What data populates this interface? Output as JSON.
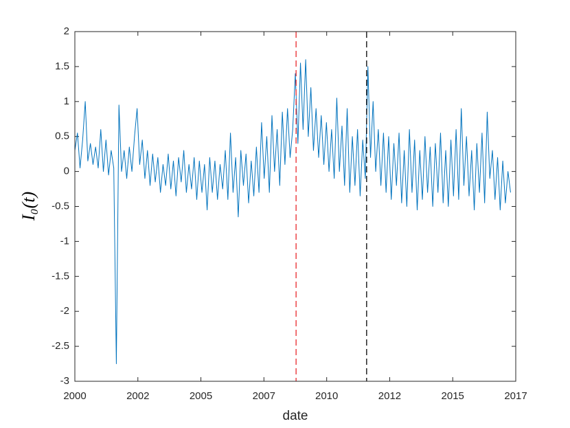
{
  "chart_data": {
    "type": "line",
    "xlabel": "date",
    "ylabel": "I₀(t)",
    "xlim": [
      2000,
      2017
    ],
    "ylim": [
      -3,
      2
    ],
    "xticks": [
      2000,
      {
        "value": 2002.43,
        "label": "2002"
      },
      {
        "value": 2004.86,
        "label": "2005"
      },
      {
        "value": 2007.29,
        "label": "2007"
      },
      {
        "value": 2009.71,
        "label": "2010"
      },
      {
        "value": 2012.14,
        "label": "2012"
      },
      {
        "value": 2014.57,
        "label": "2015"
      },
      2017
    ],
    "yticks": [
      -3,
      -2.5,
      -2,
      -1.5,
      -1,
      -0.5,
      0,
      0.5,
      1,
      1.5,
      2
    ],
    "grid": false,
    "vlines": [
      {
        "x": 2008.53,
        "color": "#e8262a"
      },
      {
        "x": 2011.25,
        "color": "#000000"
      }
    ],
    "x": [
      2000,
      2000.1,
      2000.2,
      2000.3,
      2000.4,
      2000.5,
      2000.6,
      2000.7,
      2000.8,
      2000.9,
      2001,
      2001.1,
      2001.2,
      2001.3,
      2001.4,
      2001.5,
      2001.6,
      2001.7,
      2001.8,
      2001.9,
      2002,
      2002.1,
      2002.2,
      2002.3,
      2002.4,
      2002.5,
      2002.6,
      2002.7,
      2002.8,
      2002.9,
      2003,
      2003.1,
      2003.2,
      2003.3,
      2003.4,
      2003.5,
      2003.6,
      2003.7,
      2003.8,
      2003.9,
      2004,
      2004.1,
      2004.2,
      2004.3,
      2004.4,
      2004.5,
      2004.6,
      2004.7,
      2004.8,
      2004.9,
      2005,
      2005.1,
      2005.2,
      2005.3,
      2005.4,
      2005.5,
      2005.6,
      2005.7,
      2005.8,
      2005.9,
      2006,
      2006.1,
      2006.2,
      2006.3,
      2006.4,
      2006.5,
      2006.6,
      2006.7,
      2006.8,
      2006.9,
      2007,
      2007.1,
      2007.2,
      2007.3,
      2007.4,
      2007.5,
      2007.6,
      2007.7,
      2007.8,
      2007.9,
      2008,
      2008.1,
      2008.2,
      2008.3,
      2008.4,
      2008.5,
      2008.6,
      2008.7,
      2008.8,
      2008.9,
      2009,
      2009.1,
      2009.2,
      2009.3,
      2009.4,
      2009.5,
      2009.6,
      2009.7,
      2009.8,
      2009.9,
      2010,
      2010.1,
      2010.2,
      2010.3,
      2010.4,
      2010.5,
      2010.6,
      2010.7,
      2010.8,
      2010.9,
      2011,
      2011.1,
      2011.2,
      2011.3,
      2011.4,
      2011.5,
      2011.6,
      2011.7,
      2011.8,
      2011.9,
      2012,
      2012.1,
      2012.2,
      2012.3,
      2012.4,
      2012.5,
      2012.6,
      2012.7,
      2012.8,
      2012.9,
      2013,
      2013.1,
      2013.2,
      2013.3,
      2013.4,
      2013.5,
      2013.6,
      2013.7,
      2013.8,
      2013.9,
      2014,
      2014.1,
      2014.2,
      2014.3,
      2014.4,
      2014.5,
      2014.6,
      2014.7,
      2014.8,
      2014.9,
      2015,
      2015.1,
      2015.2,
      2015.3,
      2015.4,
      2015.5,
      2015.6,
      2015.7,
      2015.8,
      2015.9,
      2016,
      2016.1,
      2016.2,
      2016.3,
      2016.4,
      2016.5,
      2016.6,
      2016.7,
      2016.8
    ],
    "series": [
      {
        "color": "#0072bd",
        "values": [
          0.3,
          0.55,
          0.05,
          0.45,
          1.0,
          0.15,
          0.4,
          0.1,
          0.35,
          0.05,
          0.6,
          0.0,
          0.45,
          -0.05,
          0.3,
          0.05,
          -2.75,
          0.95,
          0.0,
          0.3,
          -0.1,
          0.35,
          0.0,
          0.5,
          0.9,
          0.1,
          0.45,
          -0.1,
          0.3,
          -0.2,
          0.25,
          -0.15,
          0.2,
          -0.3,
          0.1,
          -0.2,
          0.25,
          -0.25,
          0.15,
          -0.35,
          0.2,
          -0.15,
          0.3,
          -0.3,
          0.1,
          -0.25,
          0.2,
          -0.4,
          0.15,
          -0.3,
          0.1,
          -0.55,
          0.2,
          -0.3,
          0.15,
          -0.4,
          0.1,
          -0.25,
          0.3,
          -0.4,
          0.55,
          -0.3,
          0.2,
          -0.65,
          0.3,
          -0.2,
          0.25,
          -0.45,
          0.15,
          -0.35,
          0.35,
          -0.3,
          0.7,
          -0.1,
          0.5,
          -0.3,
          0.8,
          0.0,
          0.6,
          -0.2,
          0.85,
          0.1,
          0.9,
          0.2,
          0.6,
          1.4,
          0.4,
          1.55,
          0.6,
          1.6,
          0.5,
          1.2,
          0.3,
          0.9,
          0.2,
          0.8,
          0.1,
          0.7,
          0.0,
          0.6,
          -0.1,
          1.05,
          0.0,
          0.65,
          -0.2,
          0.9,
          -0.3,
          0.5,
          -0.2,
          0.6,
          -0.35,
          0.45,
          -0.1,
          1.5,
          0.2,
          1.0,
          0.0,
          0.6,
          -0.2,
          0.55,
          -0.3,
          0.5,
          -0.4,
          0.4,
          -0.2,
          0.55,
          -0.45,
          0.3,
          -0.5,
          0.6,
          -0.3,
          0.45,
          -0.55,
          0.3,
          -0.4,
          0.5,
          -0.3,
          0.35,
          -0.5,
          0.4,
          -0.3,
          0.55,
          -0.45,
          0.3,
          -0.5,
          0.45,
          -0.35,
          0.6,
          -0.4,
          0.9,
          -0.2,
          0.5,
          -0.35,
          0.3,
          -0.55,
          0.4,
          -0.3,
          0.55,
          -0.45,
          0.85,
          -0.1,
          0.3,
          -0.4,
          0.2,
          -0.55,
          0.15,
          -0.45,
          0.0,
          -0.3
        ]
      }
    ]
  }
}
